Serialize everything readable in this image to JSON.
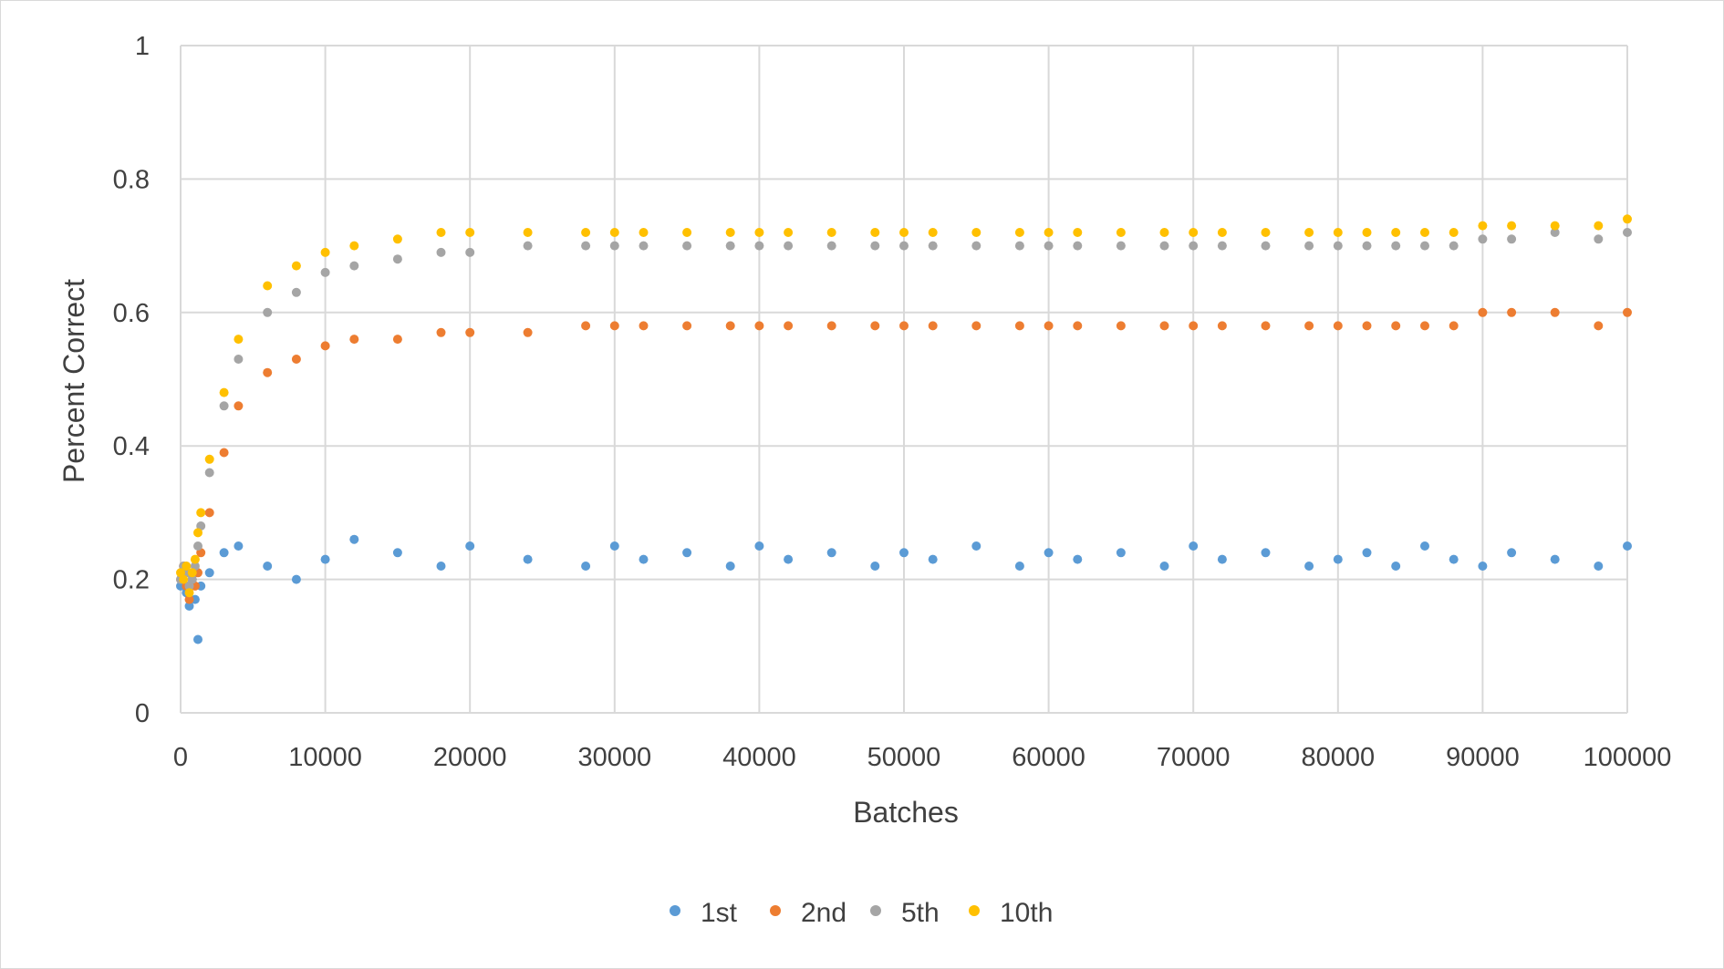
{
  "chart_data": {
    "type": "scatter",
    "title": "",
    "xlabel": "Batches",
    "ylabel": "Percent Correct",
    "xlim": [
      0,
      100000
    ],
    "ylim": [
      0,
      1
    ],
    "x_ticks": [
      0,
      10000,
      20000,
      30000,
      40000,
      50000,
      60000,
      70000,
      80000,
      90000,
      100000
    ],
    "x_tick_labels": [
      "0",
      "10000",
      "20000",
      "30000",
      "40000",
      "50000",
      "60000",
      "70000",
      "80000",
      "90000",
      "100000"
    ],
    "y_ticks": [
      0,
      0.2,
      0.4,
      0.6,
      0.8,
      1
    ],
    "y_tick_labels": [
      "0",
      "0.2",
      "0.4",
      "0.6",
      "0.8",
      "1"
    ],
    "grid": true,
    "legend_position": "bottom",
    "point_interval": 200,
    "series": [
      {
        "name": "1st",
        "color": "#5b9bd5",
        "x": [
          0,
          200,
          400,
          600,
          800,
          1000,
          1200,
          1400,
          2000,
          3000,
          4000,
          6000,
          8000,
          10000,
          12000,
          15000,
          18000,
          20000,
          24000,
          28000,
          30000,
          32000,
          35000,
          38000,
          40000,
          42000,
          45000,
          48000,
          50000,
          52000,
          55000,
          58000,
          60000,
          62000,
          65000,
          68000,
          70000,
          72000,
          75000,
          78000,
          80000,
          82000,
          84000,
          86000,
          88000,
          90000,
          92000,
          95000,
          98000,
          100000
        ],
        "y": [
          0.19,
          0.21,
          0.18,
          0.16,
          0.2,
          0.17,
          0.11,
          0.19,
          0.21,
          0.24,
          0.25,
          0.22,
          0.2,
          0.23,
          0.26,
          0.24,
          0.22,
          0.25,
          0.23,
          0.22,
          0.25,
          0.23,
          0.24,
          0.22,
          0.25,
          0.23,
          0.24,
          0.22,
          0.24,
          0.23,
          0.25,
          0.22,
          0.24,
          0.23,
          0.24,
          0.22,
          0.25,
          0.23,
          0.24,
          0.22,
          0.23,
          0.24,
          0.22,
          0.25,
          0.23,
          0.22,
          0.24,
          0.23,
          0.22,
          0.25
        ]
      },
      {
        "name": "2nd",
        "color": "#ed7d31",
        "x": [
          0,
          200,
          400,
          600,
          800,
          1000,
          1200,
          1400,
          2000,
          3000,
          4000,
          6000,
          8000,
          10000,
          12000,
          15000,
          18000,
          20000,
          24000,
          28000,
          30000,
          32000,
          35000,
          38000,
          40000,
          42000,
          45000,
          48000,
          50000,
          52000,
          55000,
          58000,
          60000,
          62000,
          65000,
          68000,
          70000,
          72000,
          75000,
          78000,
          80000,
          82000,
          84000,
          86000,
          88000,
          90000,
          92000,
          95000,
          98000,
          100000
        ],
        "y": [
          0.2,
          0.22,
          0.19,
          0.17,
          0.2,
          0.19,
          0.21,
          0.24,
          0.3,
          0.39,
          0.46,
          0.51,
          0.53,
          0.55,
          0.56,
          0.56,
          0.57,
          0.57,
          0.57,
          0.58,
          0.58,
          0.58,
          0.58,
          0.58,
          0.58,
          0.58,
          0.58,
          0.58,
          0.58,
          0.58,
          0.58,
          0.58,
          0.58,
          0.58,
          0.58,
          0.58,
          0.58,
          0.58,
          0.58,
          0.58,
          0.58,
          0.58,
          0.58,
          0.58,
          0.58,
          0.6,
          0.6,
          0.6,
          0.58,
          0.6
        ]
      },
      {
        "name": "5th",
        "color": "#a5a5a5",
        "x": [
          0,
          200,
          400,
          600,
          800,
          1000,
          1200,
          1400,
          2000,
          3000,
          4000,
          6000,
          8000,
          10000,
          12000,
          15000,
          18000,
          20000,
          24000,
          28000,
          30000,
          32000,
          35000,
          38000,
          40000,
          42000,
          45000,
          48000,
          50000,
          52000,
          55000,
          58000,
          60000,
          62000,
          65000,
          68000,
          70000,
          72000,
          75000,
          78000,
          80000,
          82000,
          84000,
          86000,
          88000,
          90000,
          92000,
          95000,
          98000,
          100000
        ],
        "y": [
          0.2,
          0.22,
          0.21,
          0.19,
          0.2,
          0.22,
          0.25,
          0.28,
          0.36,
          0.46,
          0.53,
          0.6,
          0.63,
          0.66,
          0.67,
          0.68,
          0.69,
          0.69,
          0.7,
          0.7,
          0.7,
          0.7,
          0.7,
          0.7,
          0.7,
          0.7,
          0.7,
          0.7,
          0.7,
          0.7,
          0.7,
          0.7,
          0.7,
          0.7,
          0.7,
          0.7,
          0.7,
          0.7,
          0.7,
          0.7,
          0.7,
          0.7,
          0.7,
          0.7,
          0.7,
          0.71,
          0.71,
          0.72,
          0.71,
          0.72
        ]
      },
      {
        "name": "10th",
        "color": "#ffc000",
        "x": [
          0,
          200,
          400,
          600,
          800,
          1000,
          1200,
          1400,
          2000,
          3000,
          4000,
          6000,
          8000,
          10000,
          12000,
          15000,
          18000,
          20000,
          24000,
          28000,
          30000,
          32000,
          35000,
          38000,
          40000,
          42000,
          45000,
          48000,
          50000,
          52000,
          55000,
          58000,
          60000,
          62000,
          65000,
          68000,
          70000,
          72000,
          75000,
          78000,
          80000,
          82000,
          84000,
          86000,
          88000,
          90000,
          92000,
          95000,
          98000,
          100000
        ],
        "y": [
          0.21,
          0.2,
          0.22,
          0.18,
          0.21,
          0.23,
          0.27,
          0.3,
          0.38,
          0.48,
          0.56,
          0.64,
          0.67,
          0.69,
          0.7,
          0.71,
          0.72,
          0.72,
          0.72,
          0.72,
          0.72,
          0.72,
          0.72,
          0.72,
          0.72,
          0.72,
          0.72,
          0.72,
          0.72,
          0.72,
          0.72,
          0.72,
          0.72,
          0.72,
          0.72,
          0.72,
          0.72,
          0.72,
          0.72,
          0.72,
          0.72,
          0.72,
          0.72,
          0.72,
          0.72,
          0.73,
          0.73,
          0.73,
          0.73,
          0.74
        ]
      }
    ]
  }
}
